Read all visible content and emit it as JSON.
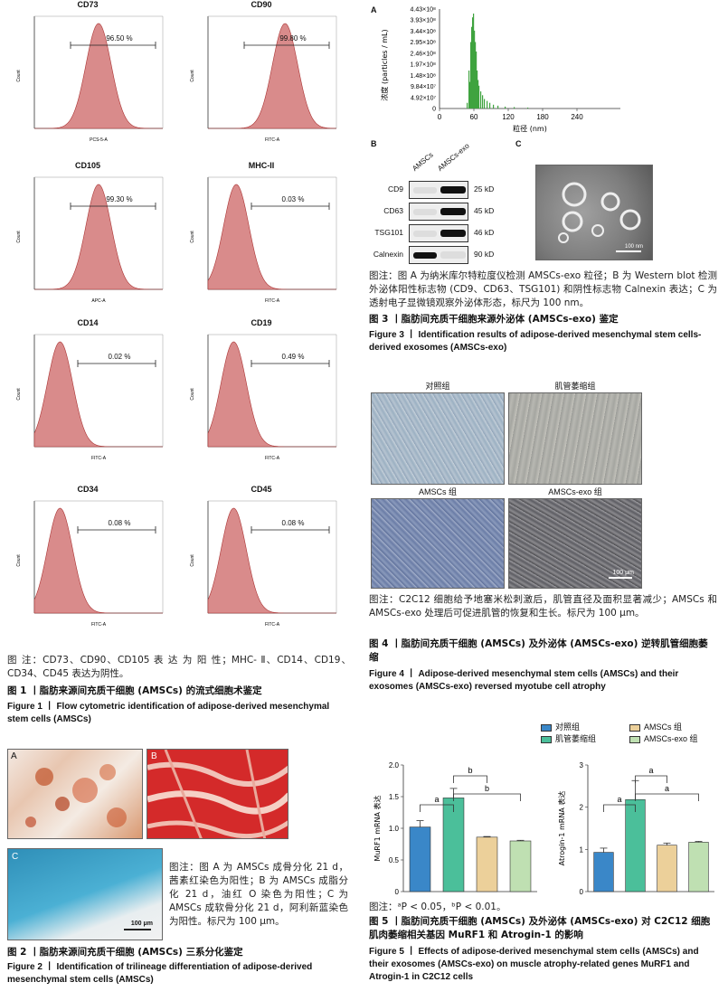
{
  "figure1": {
    "panels": [
      {
        "title": "CD73",
        "pct": "96.50 %",
        "xlabel": "PCS-5-A",
        "peak": 0.5
      },
      {
        "title": "CD90",
        "pct": "99.80 %",
        "xlabel": "FITC-A",
        "peak": 0.6
      },
      {
        "title": "CD105",
        "pct": "99.30 %",
        "xlabel": "APC-A",
        "peak": 0.5
      },
      {
        "title": "MHC-II",
        "pct": "0.03 %",
        "xlabel": "FITC-A",
        "peak": 0.22
      },
      {
        "title": "CD14",
        "pct": "0.02 %",
        "xlabel": "FITC-A",
        "peak": 0.2
      },
      {
        "title": "CD19",
        "pct": "0.49 %",
        "xlabel": "FITC-A",
        "peak": 0.2
      },
      {
        "title": "CD34",
        "pct": "0.08 %",
        "xlabel": "FITC-A",
        "peak": 0.2
      },
      {
        "title": "CD45",
        "pct": "0.08 %",
        "xlabel": "FITC-A",
        "peak": 0.2
      }
    ],
    "ylabel": "Count",
    "caption": "图 注：CD73、CD90、CD105 表 达 为 阳 性；MHC- Ⅱ、CD14、CD19、CD34、CD45 表达为阴性。",
    "title_zh": "图 1 丨脂肪来源间充质干细胞 (AMSCs) 的流式细胞术鉴定",
    "title_en": "Figure 1 丨 Flow cytometric identification of adipose-derived mesenchymal stem cells (AMSCs)"
  },
  "figure2": {
    "label_a": "A",
    "label_b": "B",
    "label_c": "C",
    "scale": "100 μm",
    "caption": "图注：图 A 为 AMSCs 成骨分化 21 d，茜素红染色为阳性；B 为 AMSCs 成脂分化 21 d，油红 O 染色为阳性；C 为 AMSCs 成软骨分化 21 d，阿利新蓝染色为阳性。标尺为 100 μm。",
    "title_zh": "图 2 丨脂肪来源间充质干细胞 (AMSCs) 三系分化鉴定",
    "title_en": "Figure 2 丨 Identification of trilineage differentiation of adipose-derived mesenchymal stem cells (AMSCs)"
  },
  "figure3": {
    "label_a": "A",
    "label_b": "B",
    "label_c": "C",
    "nta": {
      "ylabel": "浓度 (particles / mL)",
      "xlabel": "粒径 (nm)",
      "yticks": [
        "4.43×10⁸",
        "3.93×10⁸",
        "3.44×10⁸",
        "2.95×10⁸",
        "2.46×10⁸",
        "1.97×10⁸",
        "1.48×10⁸",
        "9.84×10⁷",
        "4.92×10⁷",
        "0"
      ],
      "xticks": [
        "0",
        "60",
        "120",
        "180",
        "240"
      ]
    },
    "wb": {
      "col1": "AMSCs",
      "col2": "AMSCs-exo",
      "rows": [
        {
          "name": "CD9",
          "kd": "25 kD"
        },
        {
          "name": "CD63",
          "kd": "45 kD"
        },
        {
          "name": "TSG101",
          "kd": "46 kD"
        },
        {
          "name": "Calnexin",
          "kd": "90 kD"
        }
      ]
    },
    "tem_scale": "100 nm",
    "caption": "图注：图 A 为纳米库尔特粒度仪检测 AMSCs-exo 粒径；B 为 Western blot 检测外泌体阳性标志物 (CD9、CD63、TSG101) 和阴性标志物 Calnexin 表达；C 为透射电子显微镜观察外泌体形态，标尺为 100 nm。",
    "title_zh": "图 3 丨脂肪间充质干细胞来源外泌体 (AMSCs-exo) 鉴定",
    "title_en": "Figure 3 丨 Identification results of adipose-derived mesenchymal stem cells-derived exosomes (AMSCs-exo)"
  },
  "figure4": {
    "labels": [
      "对照组",
      "肌管萎缩组",
      "AMSCs 组",
      "AMSCs-exo 组"
    ],
    "scale": "100 μm",
    "caption": "图注：C2C12 细胞给予地塞米松刺激后，肌管直径及面积显著减少；AMSCs 和 AMSCs-exo 处理后可促进肌管的恢复和生长。标尺为 100 μm。",
    "title_zh": "图 4 丨脂肪间充质干细胞 (AMSCs) 及外泌体 (AMSCs-exo) 逆转肌管细胞萎缩",
    "title_en": "Figure 4 丨 Adipose-derived mesenchymal stem cells (AMSCs) and their exosomes (AMSCs-exo) reversed myotube cell atrophy"
  },
  "figure5": {
    "legend": [
      {
        "name": "对照组",
        "color": "#3a87c8"
      },
      {
        "name": "肌管萎缩组",
        "color": "#4bbf9a"
      },
      {
        "name": "AMSCs 组",
        "color": "#ecd09a"
      },
      {
        "name": "AMSCs-exo 组",
        "color": "#bfe0b2"
      }
    ],
    "caption": "图注：ᵃP < 0.05，ᵇP < 0.01。",
    "title_zh": "图 5 丨脂肪间充质干细胞 (AMSCs) 及外泌体 (AMSCs-exo) 对 C2C12 细胞肌肉萎缩相关基因 MuRF1 和 Atrogin-1 的影响",
    "title_en": "Figure 5 丨 Effects of adipose-derived mesenchymal stem cells (AMSCs) and their exosomes (AMSCs-exo) on muscle atrophy-related genes MuRF1 and Atrogin-1 in C2C12 cells"
  },
  "chart_data": [
    {
      "type": "bar",
      "title": "",
      "ylabel": "MuRF1 mRNA 表达",
      "categories": [
        "对照组",
        "肌管萎缩组",
        "AMSCs 组",
        "AMSCs-exo 组"
      ],
      "values": [
        1.02,
        1.48,
        0.86,
        0.8
      ],
      "errors": [
        0.1,
        0.15,
        0.01,
        0.01
      ],
      "ylim": [
        0,
        2.0
      ],
      "yticks": [
        "0",
        "0.5",
        "1.0",
        "1.5",
        "2.0"
      ],
      "sig": [
        {
          "from": 0,
          "to": 1,
          "label": "a"
        },
        {
          "from": 1,
          "to": 2,
          "label": "b"
        },
        {
          "from": 1,
          "to": 3,
          "label": "b"
        }
      ]
    },
    {
      "type": "bar",
      "title": "",
      "ylabel": "Atrogin-1 mRNA 表达",
      "categories": [
        "对照组",
        "肌管萎缩组",
        "AMSCs 组",
        "AMSCs-exo 组"
      ],
      "values": [
        0.93,
        2.18,
        1.1,
        1.17
      ],
      "errors": [
        0.1,
        0.45,
        0.05,
        0.02
      ],
      "ylim": [
        0,
        3
      ],
      "yticks": [
        "0",
        "1",
        "2",
        "3"
      ],
      "sig": [
        {
          "from": 0,
          "to": 1,
          "label": "a"
        },
        {
          "from": 1,
          "to": 2,
          "label": "a"
        },
        {
          "from": 1,
          "to": 3,
          "label": "a"
        }
      ]
    }
  ]
}
